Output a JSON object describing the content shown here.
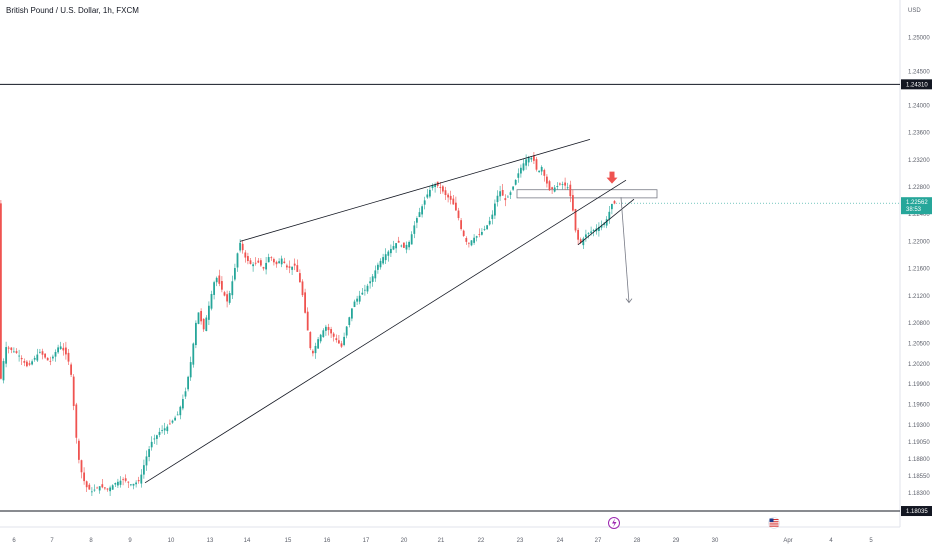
{
  "header": {
    "title": "British Pound / U.S. Dollar, 1h, FXCM"
  },
  "price_axis": {
    "currency": "USD"
  },
  "colors": {
    "bull": "#26a69a",
    "bear": "#ef5350",
    "line": "#131722",
    "current_tag": "#26a69a",
    "level_tag": "#131722",
    "arrow": "#ef5350",
    "divider": "#e0e3eb"
  },
  "chart_data": {
    "type": "candlestick",
    "title": "British Pound / U.S. Dollar, 1h, FXCM",
    "symbol": "GBPUSD",
    "interval": "1h",
    "ylim": [
      1.178,
      1.2555
    ],
    "y_ticks": [
      "1.25000",
      "1.24500",
      "1.24000",
      "1.23600",
      "1.23200",
      "1.22800",
      "1.22400",
      "1.22000",
      "1.21600",
      "1.21200",
      "1.20800",
      "1.20500",
      "1.20200",
      "1.19900",
      "1.19600",
      "1.19300",
      "1.19050",
      "1.18800",
      "1.18550",
      "1.18300",
      "1.17830"
    ],
    "x_ticks": [
      "6",
      "7",
      "8",
      "9",
      "10",
      "13",
      "14",
      "15",
      "16",
      "17",
      "20",
      "21",
      "22",
      "23",
      "24",
      "27",
      "28",
      "29",
      "30",
      "Apr",
      "4",
      "5"
    ],
    "current_price": {
      "value": 1.22562,
      "label": "1.22562",
      "countdown": "38:53"
    },
    "horizontal_levels": [
      {
        "value": 1.2431,
        "label": "1.24310"
      },
      {
        "value": 1.18035,
        "label": "1.18035"
      }
    ],
    "price_path": [
      [
        0,
        1.1985
      ],
      [
        6,
        1.2045
      ],
      [
        18,
        1.2035
      ],
      [
        28,
        1.2015
      ],
      [
        40,
        1.2038
      ],
      [
        50,
        1.2022
      ],
      [
        60,
        1.2048
      ],
      [
        68,
        1.203
      ],
      [
        72,
        1.2
      ],
      [
        76,
        1.192
      ],
      [
        80,
        1.187
      ],
      [
        86,
        1.184
      ],
      [
        92,
        1.1832
      ],
      [
        100,
        1.184
      ],
      [
        108,
        1.1835
      ],
      [
        116,
        1.1845
      ],
      [
        124,
        1.185
      ],
      [
        132,
        1.1842
      ],
      [
        140,
        1.1848
      ],
      [
        146,
        1.188
      ],
      [
        152,
        1.1905
      ],
      [
        160,
        1.192
      ],
      [
        168,
        1.1928
      ],
      [
        178,
        1.1945
      ],
      [
        186,
        1.198
      ],
      [
        192,
        1.203
      ],
      [
        198,
        1.21
      ],
      [
        204,
        1.207
      ],
      [
        210,
        1.211
      ],
      [
        216,
        1.215
      ],
      [
        222,
        1.213
      ],
      [
        228,
        1.211
      ],
      [
        234,
        1.215
      ],
      [
        240,
        1.22
      ],
      [
        246,
        1.2175
      ],
      [
        252,
        1.2165
      ],
      [
        258,
        1.217
      ],
      [
        264,
        1.216
      ],
      [
        270,
        1.218
      ],
      [
        276,
        1.2165
      ],
      [
        282,
        1.2175
      ],
      [
        288,
        1.216
      ],
      [
        296,
        1.2165
      ],
      [
        302,
        1.213
      ],
      [
        306,
        1.209
      ],
      [
        312,
        1.203
      ],
      [
        318,
        1.2055
      ],
      [
        326,
        1.2075
      ],
      [
        334,
        1.206
      ],
      [
        342,
        1.2045
      ],
      [
        348,
        1.208
      ],
      [
        354,
        1.211
      ],
      [
        360,
        1.212
      ],
      [
        366,
        1.213
      ],
      [
        372,
        1.2145
      ],
      [
        378,
        1.2165
      ],
      [
        384,
        1.2178
      ],
      [
        392,
        1.219
      ],
      [
        398,
        1.22
      ],
      [
        404,
        1.219
      ],
      [
        410,
        1.22
      ],
      [
        416,
        1.223
      ],
      [
        422,
        1.225
      ],
      [
        428,
        1.227
      ],
      [
        434,
        1.2285
      ],
      [
        440,
        1.228
      ],
      [
        446,
        1.2268
      ],
      [
        452,
        1.226
      ],
      [
        458,
        1.224
      ],
      [
        462,
        1.2215
      ],
      [
        468,
        1.2195
      ],
      [
        474,
        1.2205
      ],
      [
        480,
        1.221
      ],
      [
        486,
        1.222
      ],
      [
        492,
        1.2235
      ],
      [
        496,
        1.226
      ],
      [
        500,
        1.2275
      ],
      [
        506,
        1.226
      ],
      [
        512,
        1.2275
      ],
      [
        516,
        1.229
      ],
      [
        520,
        1.2305
      ],
      [
        526,
        1.232
      ],
      [
        530,
        1.2325
      ],
      [
        534,
        1.232
      ],
      [
        538,
        1.23
      ],
      [
        542,
        1.231
      ],
      [
        546,
        1.229
      ],
      [
        550,
        1.2275
      ],
      [
        556,
        1.228
      ],
      [
        562,
        1.2285
      ],
      [
        568,
        1.228
      ],
      [
        572,
        1.226
      ],
      [
        576,
        1.2215
      ],
      [
        580,
        1.2195
      ],
      [
        586,
        1.221
      ],
      [
        592,
        1.2215
      ],
      [
        598,
        1.222
      ],
      [
        604,
        1.2225
      ],
      [
        608,
        1.2235
      ],
      [
        612,
        1.2255
      ],
      [
        616,
        1.2256
      ]
    ],
    "drawings": {
      "upper_trendline": [
        [
          240,
          1.22
        ],
        [
          590,
          1.235
        ]
      ],
      "lower_trendline": [
        [
          145,
          1.1845
        ],
        [
          626,
          1.229
        ]
      ],
      "small_wedge_line": [
        [
          578,
          1.2195
        ],
        [
          634,
          1.2262
        ]
      ],
      "resistance_zone": {
        "x1": 517,
        "x2": 657,
        "y_top": 1.2276,
        "y_bottom": 1.2264
      },
      "down_arrow_marker": [
        612,
        1.2285
      ],
      "projection_arrow": [
        [
          621,
          1.2265
        ],
        [
          629,
          1.211
        ]
      ]
    },
    "event_icons": [
      {
        "x": 614,
        "label": "lightning-event"
      },
      {
        "x": 774,
        "label": "us-flag-event"
      }
    ]
  }
}
